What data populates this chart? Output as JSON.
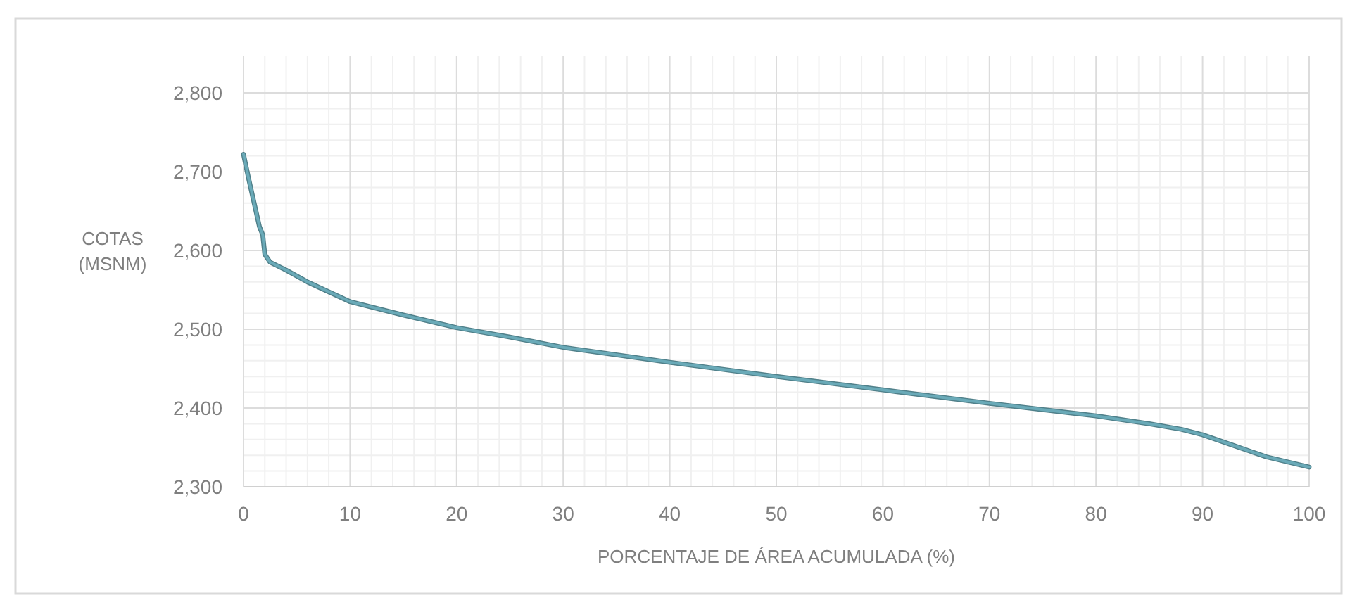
{
  "chart_data": {
    "type": "line",
    "xlabel": "PORCENTAJE DE ÁREA ACUMULADA (%)",
    "ylabel": "COTAS\n(MSNM)",
    "xlim": [
      0,
      100
    ],
    "xticks": [
      0,
      10,
      20,
      30,
      40,
      50,
      60,
      70,
      80,
      90,
      100
    ],
    "ylim": [
      2300,
      2800
    ],
    "yticks": [
      {
        "value": 2300,
        "label": "2,300"
      },
      {
        "value": 2400,
        "label": "2,400"
      },
      {
        "value": 2500,
        "label": "2,500"
      },
      {
        "value": 2600,
        "label": "2,600"
      },
      {
        "value": 2700,
        "label": "2,700"
      },
      {
        "value": 2800,
        "label": "2,800"
      }
    ],
    "grid": true,
    "marker": "none",
    "line_style": "solid",
    "series": [
      {
        "color": "#6aaab8",
        "x": [
          0,
          0.5,
          1,
          1.5,
          1.8,
          2,
          2.5,
          4,
          6,
          10,
          15,
          20,
          25,
          30,
          40,
          50,
          60,
          70,
          80,
          85,
          88,
          90,
          93,
          96,
          100
        ],
        "values": [
          2722,
          2690,
          2660,
          2630,
          2620,
          2595,
          2585,
          2575,
          2560,
          2535,
          2518,
          2502,
          2490,
          2477,
          2458,
          2440,
          2423,
          2406,
          2390,
          2380,
          2373,
          2366,
          2352,
          2338,
          2325
        ]
      }
    ]
  }
}
